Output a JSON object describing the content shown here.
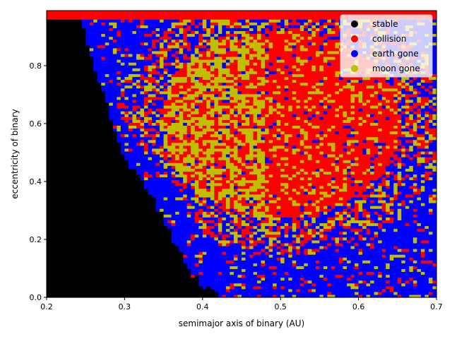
{
  "chart_data": {
    "type": "heatmap",
    "title": "",
    "xlabel": "semimajor axis of binary (AU)",
    "ylabel": "eccentricity of binary",
    "xlim": [
      0.2,
      0.7
    ],
    "ylim": [
      0.0,
      0.99
    ],
    "x_ticks": [
      "0.2",
      "0.3",
      "0.4",
      "0.5",
      "0.6",
      "0.7"
    ],
    "x_tick_values": [
      0.2,
      0.3,
      0.4,
      0.5,
      0.6,
      0.7
    ],
    "y_ticks": [
      "0.0",
      "0.2",
      "0.4",
      "0.6",
      "0.8"
    ],
    "y_tick_values": [
      0.0,
      0.2,
      0.4,
      0.6,
      0.8
    ],
    "grid": false,
    "legend_position": "top-right",
    "categories": [
      {
        "name": "stable",
        "color": "#000000"
      },
      {
        "name": "collision",
        "color": "#ff0000"
      },
      {
        "name": "earth gone",
        "color": "#0000ff"
      },
      {
        "name": "moon gone",
        "color": "#bfbf00"
      }
    ],
    "grid_resolution": {
      "a_steps": 100,
      "e_steps": 100
    },
    "regions": {
      "stable_boundary_e_vs_a": [
        [
          0.2,
          0.99
        ],
        [
          0.24,
          0.99
        ],
        [
          0.27,
          0.72
        ],
        [
          0.3,
          0.48
        ],
        [
          0.33,
          0.38
        ],
        [
          0.36,
          0.22
        ],
        [
          0.38,
          0.1
        ],
        [
          0.4,
          0.04
        ],
        [
          0.43,
          0.0
        ]
      ],
      "earth_gone_band_width_e": 0.15,
      "collision_center": [
        0.5,
        0.55
      ],
      "moon_gone_center": [
        0.44,
        0.62
      ]
    }
  }
}
